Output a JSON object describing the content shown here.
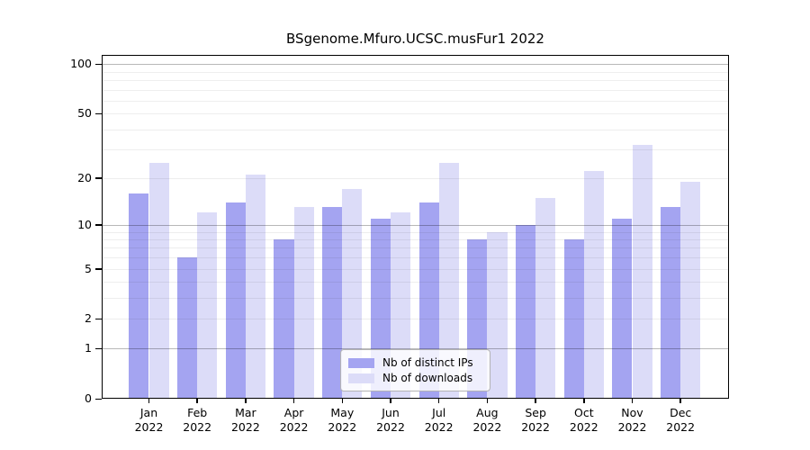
{
  "chart_data": {
    "type": "bar",
    "title": "BSgenome.Mfuro.UCSC.musFur1 2022",
    "year": "2022",
    "categories": [
      "Jan",
      "Feb",
      "Mar",
      "Apr",
      "May",
      "Jun",
      "Jul",
      "Aug",
      "Sep",
      "Oct",
      "Nov",
      "Dec"
    ],
    "series": [
      {
        "name": "Nb of distinct IPs",
        "color": "#a4a4f1",
        "values": [
          16,
          6,
          14,
          8,
          13,
          11,
          14,
          8,
          10,
          8,
          11,
          13
        ]
      },
      {
        "name": "Nb of downloads",
        "color": "#dcdcf8",
        "values": [
          25,
          12,
          21,
          13,
          17,
          12,
          25,
          9,
          15,
          22,
          32,
          19
        ]
      }
    ],
    "y_ticks": [
      0,
      1,
      2,
      5,
      10,
      20,
      50,
      100
    ],
    "y_scale": "log10(1+v)",
    "ylim": [
      0,
      100
    ],
    "xlabel": "",
    "ylabel": "",
    "grid": true,
    "gridlines_minor": [
      2,
      3,
      4,
      5,
      6,
      7,
      8,
      9,
      20,
      30,
      40,
      50,
      60,
      70,
      80,
      90
    ],
    "gridlines_major": [
      1,
      10,
      100
    ],
    "legend_position": "bottom-center"
  }
}
